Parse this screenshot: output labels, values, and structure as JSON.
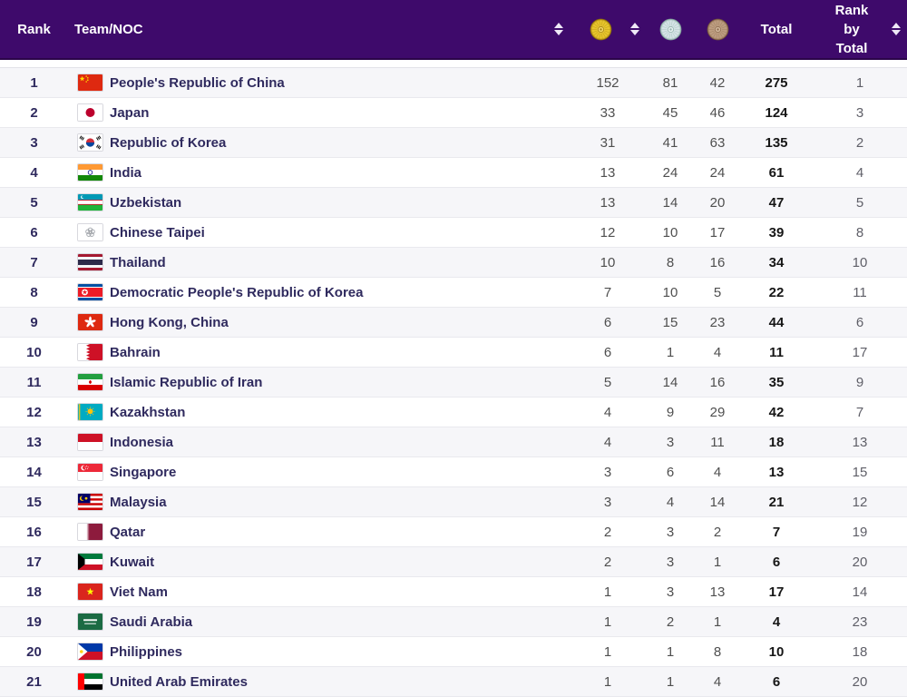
{
  "header": {
    "rank": "Rank",
    "team": "Team/NOC",
    "gold_icon": "gold-medal-icon",
    "silver_icon": "silver-medal-icon",
    "bronze_icon": "bronze-medal-icon",
    "total": "Total",
    "rank_by_total": "Rank by Total"
  },
  "colors": {
    "header_bg": "#3e0a6b",
    "header_text": "#ffffff",
    "row_stripe": "#f6f6f9",
    "row_border": "#e9e9ee",
    "team_text": "#2f2a5e",
    "number_text": "#4f4f4f",
    "total_text": "#161616",
    "rank_by_total_text": "#5f5f68",
    "gold": "#e7c52c",
    "silver": "#d5e4e6",
    "bronze": "#bd9d80"
  },
  "rows": [
    {
      "rank": 1,
      "team": "People's Republic of China",
      "flag": "chn",
      "gold": 152,
      "silver": 81,
      "bronze": 42,
      "total": 275,
      "rank_by_total": 1
    },
    {
      "rank": 2,
      "team": "Japan",
      "flag": "jpn",
      "gold": 33,
      "silver": 45,
      "bronze": 46,
      "total": 124,
      "rank_by_total": 3
    },
    {
      "rank": 3,
      "team": "Republic of Korea",
      "flag": "kor",
      "gold": 31,
      "silver": 41,
      "bronze": 63,
      "total": 135,
      "rank_by_total": 2
    },
    {
      "rank": 4,
      "team": "India",
      "flag": "ind",
      "gold": 13,
      "silver": 24,
      "bronze": 24,
      "total": 61,
      "rank_by_total": 4
    },
    {
      "rank": 5,
      "team": "Uzbekistan",
      "flag": "uzb",
      "gold": 13,
      "silver": 14,
      "bronze": 20,
      "total": 47,
      "rank_by_total": 5
    },
    {
      "rank": 6,
      "team": "Chinese Taipei",
      "flag": "tpe",
      "gold": 12,
      "silver": 10,
      "bronze": 17,
      "total": 39,
      "rank_by_total": 8
    },
    {
      "rank": 7,
      "team": "Thailand",
      "flag": "tha",
      "gold": 10,
      "silver": 8,
      "bronze": 16,
      "total": 34,
      "rank_by_total": 10
    },
    {
      "rank": 8,
      "team": "Democratic People's Republic of Korea",
      "flag": "prk",
      "gold": 7,
      "silver": 10,
      "bronze": 5,
      "total": 22,
      "rank_by_total": 11
    },
    {
      "rank": 9,
      "team": "Hong Kong, China",
      "flag": "hkg",
      "gold": 6,
      "silver": 15,
      "bronze": 23,
      "total": 44,
      "rank_by_total": 6
    },
    {
      "rank": 10,
      "team": "Bahrain",
      "flag": "bhr",
      "gold": 6,
      "silver": 1,
      "bronze": 4,
      "total": 11,
      "rank_by_total": 17
    },
    {
      "rank": 11,
      "team": "Islamic Republic of Iran",
      "flag": "irn",
      "gold": 5,
      "silver": 14,
      "bronze": 16,
      "total": 35,
      "rank_by_total": 9
    },
    {
      "rank": 12,
      "team": "Kazakhstan",
      "flag": "kaz",
      "gold": 4,
      "silver": 9,
      "bronze": 29,
      "total": 42,
      "rank_by_total": 7
    },
    {
      "rank": 13,
      "team": "Indonesia",
      "flag": "idn",
      "gold": 4,
      "silver": 3,
      "bronze": 11,
      "total": 18,
      "rank_by_total": 13
    },
    {
      "rank": 14,
      "team": "Singapore",
      "flag": "sgp",
      "gold": 3,
      "silver": 6,
      "bronze": 4,
      "total": 13,
      "rank_by_total": 15
    },
    {
      "rank": 15,
      "team": "Malaysia",
      "flag": "mys",
      "gold": 3,
      "silver": 4,
      "bronze": 14,
      "total": 21,
      "rank_by_total": 12
    },
    {
      "rank": 16,
      "team": "Qatar",
      "flag": "qat",
      "gold": 2,
      "silver": 3,
      "bronze": 2,
      "total": 7,
      "rank_by_total": 19
    },
    {
      "rank": 17,
      "team": "Kuwait",
      "flag": "kuw",
      "gold": 2,
      "silver": 3,
      "bronze": 1,
      "total": 6,
      "rank_by_total": 20
    },
    {
      "rank": 18,
      "team": "Viet Nam",
      "flag": "vnm",
      "gold": 1,
      "silver": 3,
      "bronze": 13,
      "total": 17,
      "rank_by_total": 14
    },
    {
      "rank": 19,
      "team": "Saudi Arabia",
      "flag": "sau",
      "gold": 1,
      "silver": 2,
      "bronze": 1,
      "total": 4,
      "rank_by_total": 23
    },
    {
      "rank": 20,
      "team": "Philippines",
      "flag": "phl",
      "gold": 1,
      "silver": 1,
      "bronze": 8,
      "total": 10,
      "rank_by_total": 18
    },
    {
      "rank": 21,
      "team": "United Arab Emirates",
      "flag": "are",
      "gold": 1,
      "silver": 1,
      "bronze": 4,
      "total": 6,
      "rank_by_total": 20
    }
  ]
}
